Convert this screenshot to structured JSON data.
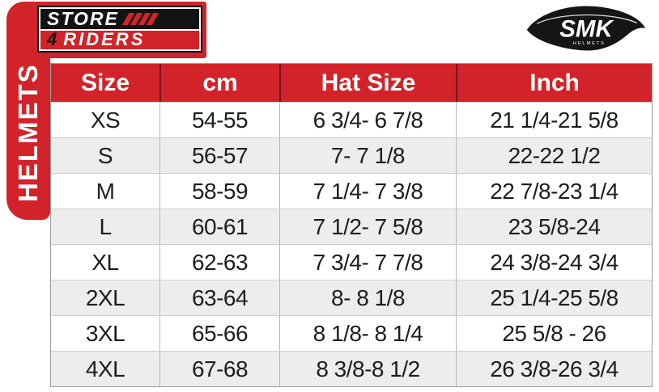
{
  "colors": {
    "brand_red": "#d2232a",
    "row_alt_gray": "#ecedec",
    "text_dark": "#1d1d1b",
    "logo_black": "#131313",
    "border_gray": "#b5b7b6"
  },
  "brand": {
    "store_text": "STORE",
    "store_stripes_icon": "four-diagonal-stripes",
    "riders_number": "4",
    "riders_text": "RIDERS",
    "vertical_label": "HELMETS"
  },
  "smk_logo": {
    "text": "SMK",
    "subtext": "HELMETS"
  },
  "table": {
    "headers": [
      "Size",
      "cm",
      "Hat Size",
      "Inch"
    ],
    "rows": [
      [
        "XS",
        "54-55",
        "6 3/4- 6 7/8",
        "21 1/4-21 5/8"
      ],
      [
        "S",
        "56-57",
        "7- 7 1/8",
        "22-22 1/2"
      ],
      [
        "M",
        "58-59",
        "7 1/4- 7 3/8",
        "22 7/8-23 1/4"
      ],
      [
        "L",
        "60-61",
        "7 1/2- 7 5/8",
        "23 5/8-24"
      ],
      [
        "XL",
        "62-63",
        "7 3/4- 7 7/8",
        "24 3/8-24 3/4"
      ],
      [
        "2XL",
        "63-64",
        "8- 8 1/8",
        "25 1/4-25 5/8"
      ],
      [
        "3XL",
        "65-66",
        "8 1/8- 8 1/4",
        "25 5/8 - 26"
      ],
      [
        "4XL",
        "67-68",
        "8 3/8-8 1/2",
        "26 3/8-26 3/4"
      ]
    ]
  }
}
